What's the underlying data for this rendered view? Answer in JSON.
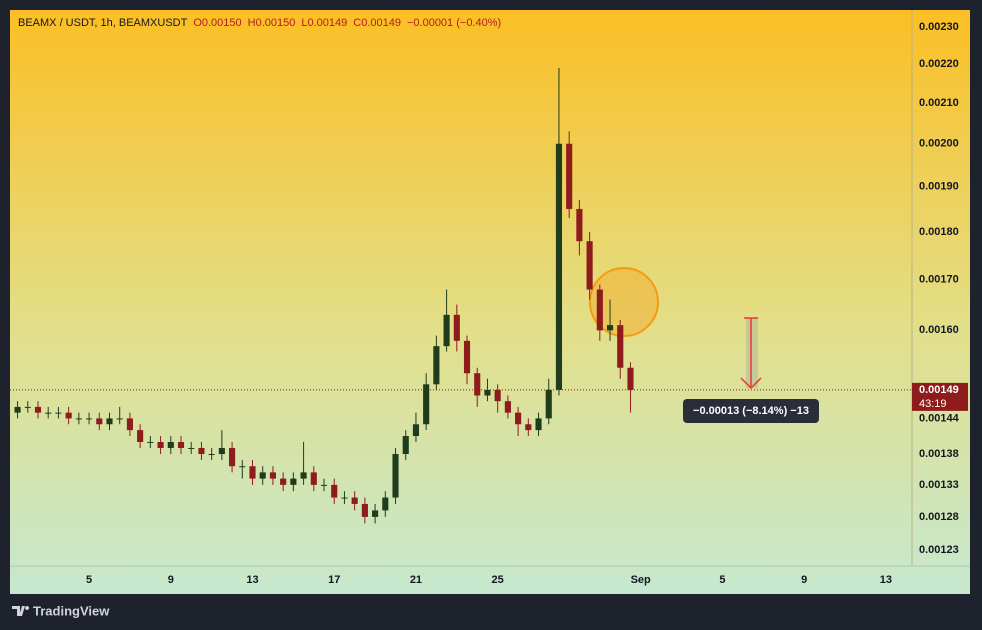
{
  "chart_data": {
    "type": "candlestick",
    "title": "BEAMX / USDT, 1h, BEAMXUSDT",
    "legend_values": [
      "O0.00150",
      "H0.00150",
      "L0.00149",
      "C0.00149",
      "−0.00001 (−0.40%)"
    ],
    "log_scale": true,
    "up_color": "#1f3d1c",
    "down_color": "#8e1c1c",
    "xlim": [
      1.13,
      45.28
    ],
    "ylim": [
      0.001207,
      0.002347
    ],
    "xticks": [
      5,
      9,
      13,
      17,
      21,
      25,
      {
        "value": 32,
        "label": "Sep"
      },
      {
        "value": 36,
        "label": "5"
      },
      {
        "value": 40,
        "label": "9"
      },
      {
        "value": 44,
        "label": "13"
      }
    ],
    "yticks": [
      {
        "value": 0.0023,
        "label": "0.00230"
      },
      {
        "value": 0.0022,
        "label": "0.00220"
      },
      {
        "value": 0.0021,
        "label": "0.00210"
      },
      {
        "value": 0.002,
        "label": "0.00200"
      },
      {
        "value": 0.0019,
        "label": "0.00190"
      },
      {
        "value": 0.0018,
        "label": "0.00180"
      },
      {
        "value": 0.0017,
        "label": "0.00170"
      },
      {
        "value": 0.0016,
        "label": "0.00160"
      },
      0.00144,
      0.00138,
      0.00133,
      0.00128,
      0.00123
    ],
    "x": [
      1.5,
      2,
      2.5,
      3,
      3.5,
      4,
      4.5,
      5,
      5.5,
      6,
      6.5,
      7,
      7.5,
      8,
      8.5,
      9,
      9.5,
      10,
      10.5,
      11,
      11.5,
      12,
      12.5,
      13,
      13.5,
      14,
      14.5,
      15,
      15.5,
      16,
      16.5,
      17,
      17.5,
      18,
      18.5,
      19,
      19.5,
      20,
      20.5,
      21,
      21.5,
      22,
      22.5,
      23,
      23.5,
      24,
      24.5,
      25,
      25.5,
      26,
      26.5,
      27,
      27.5,
      28,
      28.5,
      29,
      29.5,
      30,
      30.5,
      31,
      31.5
    ],
    "open": [
      0.00145,
      0.00146,
      0.00146,
      0.00145,
      0.00145,
      0.00145,
      0.00144,
      0.00144,
      0.00144,
      0.00143,
      0.00144,
      0.00144,
      0.00142,
      0.0014,
      0.0014,
      0.00139,
      0.0014,
      0.00139,
      0.00139,
      0.00138,
      0.00138,
      0.00139,
      0.00136,
      0.00136,
      0.00134,
      0.00135,
      0.00134,
      0.00133,
      0.00134,
      0.00135,
      0.00133,
      0.00133,
      0.00131,
      0.00131,
      0.0013,
      0.00128,
      0.00129,
      0.00131,
      0.00138,
      0.00141,
      0.00143,
      0.0015,
      0.00157,
      0.00163,
      0.00158,
      0.00152,
      0.00148,
      0.00149,
      0.00147,
      0.00145,
      0.00143,
      0.00142,
      0.00144,
      0.00149,
      0.002,
      0.00185,
      0.00178,
      0.00168,
      0.0016,
      0.00161,
      0.00153
    ],
    "high": [
      0.00147,
      0.00147,
      0.00147,
      0.00146,
      0.00146,
      0.00146,
      0.00145,
      0.00145,
      0.00145,
      0.00145,
      0.00146,
      0.00145,
      0.00143,
      0.00141,
      0.00141,
      0.00141,
      0.00141,
      0.0014,
      0.0014,
      0.00139,
      0.00142,
      0.0014,
      0.00137,
      0.00137,
      0.00136,
      0.00136,
      0.00135,
      0.00135,
      0.0014,
      0.00136,
      0.00134,
      0.00134,
      0.00132,
      0.00132,
      0.00131,
      0.0013,
      0.00132,
      0.00139,
      0.00142,
      0.00145,
      0.00152,
      0.00159,
      0.00168,
      0.00165,
      0.00159,
      0.00153,
      0.00151,
      0.0015,
      0.00148,
      0.00146,
      0.00144,
      0.00145,
      0.00151,
      0.00219,
      0.00203,
      0.00187,
      0.0018,
      0.00169,
      0.00166,
      0.00162,
      0.00154
    ],
    "low": [
      0.00144,
      0.00145,
      0.00144,
      0.00144,
      0.00144,
      0.00143,
      0.00143,
      0.00143,
      0.00142,
      0.00142,
      0.00143,
      0.00141,
      0.00139,
      0.00139,
      0.00138,
      0.00138,
      0.00138,
      0.00138,
      0.00137,
      0.00137,
      0.00137,
      0.00135,
      0.00134,
      0.00133,
      0.00133,
      0.00133,
      0.00132,
      0.00132,
      0.00133,
      0.00132,
      0.00132,
      0.0013,
      0.0013,
      0.00129,
      0.00127,
      0.00127,
      0.00128,
      0.0013,
      0.00137,
      0.0014,
      0.00142,
      0.00149,
      0.00156,
      0.00156,
      0.0015,
      0.00146,
      0.00147,
      0.00145,
      0.00144,
      0.00141,
      0.00141,
      0.00141,
      0.00143,
      0.00148,
      0.00183,
      0.00175,
      0.00166,
      0.00158,
      0.00158,
      0.00151,
      0.00145
    ],
    "close": [
      0.00146,
      0.00146,
      0.00145,
      0.00145,
      0.00145,
      0.00144,
      0.00144,
      0.00144,
      0.00143,
      0.00144,
      0.00144,
      0.00142,
      0.0014,
      0.0014,
      0.00139,
      0.0014,
      0.00139,
      0.00139,
      0.00138,
      0.00138,
      0.00139,
      0.00136,
      0.00136,
      0.00134,
      0.00135,
      0.00134,
      0.00133,
      0.00134,
      0.00135,
      0.00133,
      0.00133,
      0.00131,
      0.00131,
      0.0013,
      0.00128,
      0.00129,
      0.00131,
      0.00138,
      0.00141,
      0.00143,
      0.0015,
      0.00157,
      0.00163,
      0.00158,
      0.00152,
      0.00148,
      0.00149,
      0.00147,
      0.00145,
      0.00143,
      0.00142,
      0.00144,
      0.00149,
      0.002,
      0.00185,
      0.00178,
      0.00168,
      0.0016,
      0.00161,
      0.00153,
      0.00149
    ],
    "last_price": 0.00149,
    "countdown": "43:19",
    "measure_label": "−0.00013 (−8.14%) −13"
  },
  "footer": {
    "brand": "TradingView"
  }
}
